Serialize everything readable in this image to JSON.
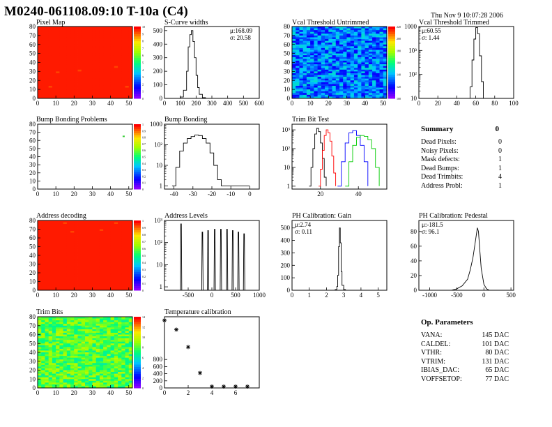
{
  "title": "M0240-061108.09:10 T-10a (C4)",
  "date": "Thu Nov  9 10:07:28 2006",
  "chart_data": [
    {
      "id": "pixelmap",
      "type": "heatmap",
      "title": "Pixel Map",
      "xticks": [
        0,
        10,
        20,
        30,
        40,
        50
      ],
      "yticks": [
        0,
        10,
        20,
        30,
        40,
        50,
        60,
        70,
        80
      ],
      "xlim": [
        0,
        52
      ],
      "ylim": [
        0,
        80
      ],
      "fill": "uniform-red",
      "palette_labels": [
        "0",
        "1",
        "2",
        "3",
        "4",
        "5",
        "6",
        "7",
        "8",
        "9",
        "10"
      ]
    },
    {
      "id": "scurve",
      "type": "bar",
      "title": "S-Curve widths",
      "xticks": [
        0,
        100,
        200,
        300,
        400,
        500,
        600
      ],
      "yticks": [
        0,
        100,
        200,
        300,
        400,
        500
      ],
      "xlim": [
        0,
        600
      ],
      "ylim": [
        0,
        530
      ],
      "x": [
        80,
        100,
        120,
        140,
        150,
        160,
        170,
        180,
        190,
        200,
        210,
        220,
        240,
        260
      ],
      "values": [
        0,
        10,
        60,
        200,
        380,
        470,
        500,
        420,
        300,
        170,
        80,
        30,
        5,
        0
      ],
      "stats": [
        "μ:168.09",
        "σ: 20.58"
      ]
    },
    {
      "id": "vcalun",
      "type": "heatmap",
      "title": "Vcal Threshold Untrimmed",
      "xticks": [
        0,
        10,
        20,
        30,
        40,
        50
      ],
      "yticks": [
        0,
        10,
        20,
        30,
        40,
        50,
        60,
        70,
        80
      ],
      "xlim": [
        0,
        52
      ],
      "ylim": [
        0,
        80
      ],
      "fill": "noisy-blue",
      "palette_labels": [
        "100",
        "120",
        "140",
        "160",
        "180",
        "200",
        "220"
      ]
    },
    {
      "id": "vcaltr",
      "type": "bar",
      "title": "Vcal Threshold Trimmed",
      "log": true,
      "xticks": [
        0,
        20,
        40,
        60,
        80,
        100
      ],
      "yticks": [
        "10",
        "10²",
        "10³"
      ],
      "xlim": [
        0,
        100
      ],
      "ylim": [
        1,
        1000
      ],
      "x": [
        52,
        54,
        56,
        58,
        60,
        62,
        64,
        66,
        68
      ],
      "values": [
        0,
        3,
        40,
        300,
        900,
        500,
        60,
        5,
        0
      ],
      "stats": [
        "μ:60.55",
        "σ: 1.44"
      ]
    },
    {
      "id": "bumpprob",
      "type": "heatmap",
      "title": "Bump Bonding Problems",
      "xticks": [
        0,
        10,
        20,
        30,
        40,
        50
      ],
      "yticks": [
        0,
        10,
        20,
        30,
        40,
        50,
        60,
        70,
        80
      ],
      "xlim": [
        0,
        52
      ],
      "ylim": [
        0,
        80
      ],
      "fill": "empty",
      "points": [
        [
          47,
          65
        ]
      ],
      "palette_labels": [
        "0",
        "0.1",
        "0.2",
        "0.3",
        "0.4",
        "0.5",
        "0.6",
        "0.7",
        "0.8",
        "0.9",
        "1"
      ]
    },
    {
      "id": "bumpbond",
      "type": "bar",
      "title": "Bump Bonding",
      "log": true,
      "xticks": [
        -40,
        -30,
        -20,
        -10,
        0
      ],
      "yticks": [
        "1",
        "10",
        "10²"
      ],
      "xlim": [
        -45,
        5
      ],
      "ylim": [
        0.7,
        1000
      ],
      "x": [
        -41,
        -39,
        -37,
        -35,
        -33,
        -31,
        -29,
        -27,
        -25,
        -23,
        -21,
        -19,
        -17,
        -15,
        -5,
        0
      ],
      "values": [
        1,
        8,
        50,
        120,
        200,
        250,
        300,
        280,
        200,
        120,
        40,
        10,
        2,
        1,
        1,
        1
      ],
      "stats": []
    },
    {
      "id": "trimbit",
      "type": "line",
      "title": "Trim Bit Test",
      "log": true,
      "xticks": [
        20,
        40
      ],
      "yticks": [
        "1",
        "10",
        "10²",
        "10³"
      ],
      "xlim": [
        5,
        55
      ],
      "ylim": [
        0.7,
        2000
      ],
      "series": [
        {
          "color": "#000000",
          "x": [
            14,
            15,
            16,
            17,
            18,
            19,
            20,
            21,
            22,
            23
          ],
          "values": [
            1,
            10,
            100,
            600,
            1200,
            800,
            200,
            30,
            3,
            1
          ]
        },
        {
          "color": "#ff0000",
          "x": [
            19,
            20,
            21,
            22,
            23,
            24,
            25,
            26,
            27,
            28
          ],
          "values": [
            1,
            8,
            80,
            500,
            1000,
            700,
            250,
            40,
            5,
            1
          ]
        },
        {
          "color": "#0000ff",
          "x": [
            29,
            31,
            33,
            35,
            37,
            39,
            41,
            43,
            45
          ],
          "values": [
            1,
            20,
            200,
            700,
            900,
            500,
            150,
            20,
            1
          ]
        },
        {
          "color": "#00cc00",
          "x": [
            33,
            35,
            37,
            39,
            41,
            43,
            45,
            47,
            49,
            51
          ],
          "values": [
            1,
            20,
            150,
            400,
            500,
            450,
            300,
            100,
            10,
            1
          ]
        }
      ],
      "stats": []
    },
    {
      "id": "addrdec",
      "type": "heatmap",
      "title": "Address decoding",
      "xticks": [
        0,
        10,
        20,
        30,
        40,
        50
      ],
      "yticks": [
        0,
        10,
        20,
        30,
        40,
        50,
        60,
        70,
        80
      ],
      "xlim": [
        0,
        52
      ],
      "ylim": [
        0,
        80
      ],
      "fill": "uniform-red",
      "palette_labels": [
        "0",
        "0.1",
        "0.2",
        "0.3",
        "0.4",
        "0.5",
        "0.6",
        "0.7",
        "0.8",
        "0.9",
        "1"
      ]
    },
    {
      "id": "addrlev",
      "type": "bar",
      "title": "Address Levels",
      "log": true,
      "xticks": [
        -500,
        0,
        500,
        1000
      ],
      "yticks": [
        "1",
        "10",
        "10²",
        "10³"
      ],
      "xlim": [
        -1000,
        1000
      ],
      "ylim": [
        0.7,
        1000
      ],
      "peaks": [
        -650,
        -200,
        -80,
        60,
        190,
        320,
        440,
        560,
        680
      ],
      "peak_heights": [
        700,
        300,
        350,
        400,
        400,
        400,
        350,
        300,
        250
      ],
      "stats": []
    },
    {
      "id": "phgain",
      "type": "bar",
      "title": "PH Calibration: Gain",
      "xticks": [
        0,
        1,
        2,
        3,
        4,
        5
      ],
      "yticks": [
        0,
        100,
        200,
        300,
        400,
        500
      ],
      "xlim": [
        0,
        5.5
      ],
      "ylim": [
        0,
        560
      ],
      "x": [
        2.4,
        2.5,
        2.6,
        2.65,
        2.7,
        2.75,
        2.8,
        2.85,
        2.9,
        3.0,
        3.1
      ],
      "values": [
        0,
        5,
        30,
        120,
        350,
        500,
        380,
        150,
        40,
        5,
        0
      ],
      "stats": [
        "μ:2.74",
        "σ: 0.11"
      ]
    },
    {
      "id": "phped",
      "type": "line",
      "title": "PH Calibration: Pedestal",
      "xticks": [
        -1000,
        -500,
        0,
        500
      ],
      "yticks": [
        0,
        20,
        40,
        60,
        80
      ],
      "xlim": [
        -1200,
        550
      ],
      "ylim": [
        0,
        95
      ],
      "x": [
        -600,
        -500,
        -400,
        -300,
        -250,
        -200,
        -150,
        -120,
        -100,
        -80,
        -50,
        0,
        50,
        100
      ],
      "values": [
        0,
        2,
        6,
        15,
        28,
        45,
        70,
        85,
        80,
        60,
        30,
        8,
        2,
        0
      ],
      "stats": [
        "μ:-181.5",
        "σ: 96.1"
      ]
    },
    {
      "id": "trimbits",
      "type": "heatmap",
      "title": "Trim Bits",
      "xticks": [
        0,
        10,
        20,
        30,
        40,
        50
      ],
      "yticks": [
        0,
        10,
        20,
        30,
        40,
        50,
        60,
        70,
        80
      ],
      "xlim": [
        0,
        52
      ],
      "ylim": [
        0,
        80
      ],
      "fill": "noisy-green",
      "palette_labels": [
        "0",
        "2",
        "4",
        "6",
        "8",
        "10",
        "12",
        "14"
      ]
    },
    {
      "id": "tempcal",
      "type": "scatter",
      "title": "Temperature calibration",
      "xticks": [
        0,
        2,
        4,
        6
      ],
      "yticks": [
        0,
        200,
        400,
        600,
        800
      ],
      "xlim": [
        0,
        8
      ],
      "ylim": [
        0,
        2000
      ],
      "x": [
        0,
        1,
        2,
        3,
        4,
        5,
        6,
        7
      ],
      "values": [
        1900,
        1640,
        1150,
        420,
        40,
        40,
        40,
        40
      ],
      "stats": []
    }
  ],
  "summary": {
    "head_label": "Summary",
    "head_value": "0",
    "rows": [
      {
        "k": "Dead Pixels:",
        "v": "0"
      },
      {
        "k": "Noisy Pixels:",
        "v": "0"
      },
      {
        "k": "Mask defects:",
        "v": "1"
      },
      {
        "k": "Dead Bumps:",
        "v": "1"
      },
      {
        "k": "Dead Trimbits:",
        "v": "4"
      },
      {
        "k": "Address Probl:",
        "v": "1"
      }
    ]
  },
  "params": {
    "head_label": "Op. Parameters",
    "rows": [
      {
        "k": "VANA:",
        "v": "145 DAC"
      },
      {
        "k": "CALDEL:",
        "v": "101 DAC"
      },
      {
        "k": "VTHR:",
        "v": "80 DAC"
      },
      {
        "k": "VTRIM:",
        "v": "131 DAC"
      },
      {
        "k": "IBIAS_DAC:",
        "v": "65 DAC"
      },
      {
        "k": "VOFFSETOP:",
        "v": "77 DAC"
      }
    ]
  }
}
